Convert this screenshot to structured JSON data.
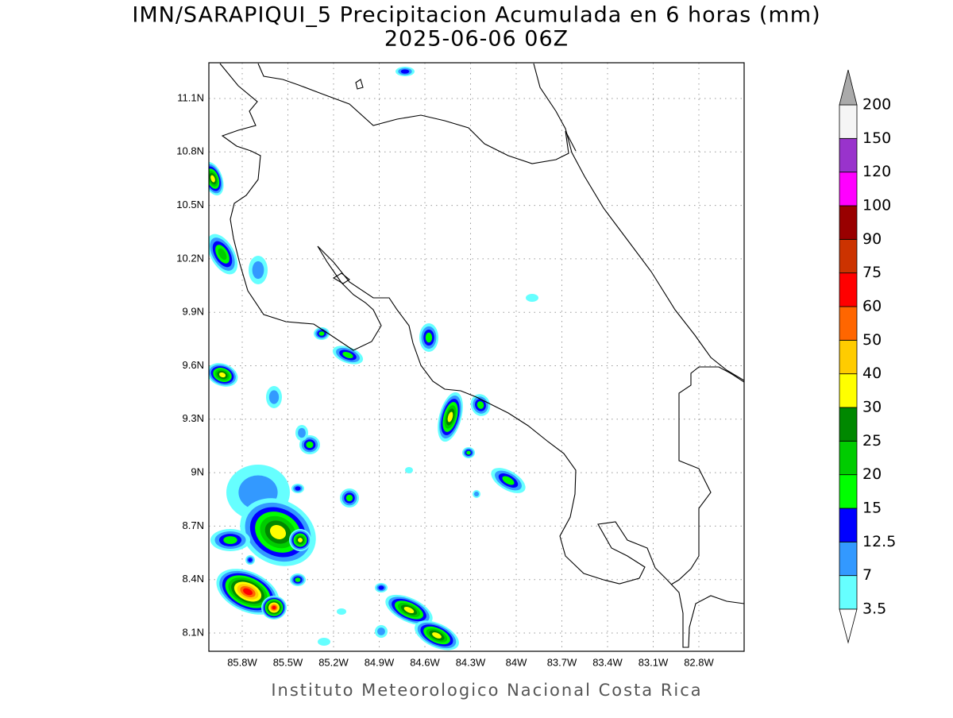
{
  "title": "IMN/SARAPIQUI_5 Precipitacion Acumulada en 6 horas (mm)",
  "subtitle": "2025-06-06 06Z",
  "map": {
    "lon_ticks": [
      {
        "value": -85.8,
        "label": "85.8W"
      },
      {
        "value": -85.5,
        "label": "85.5W"
      },
      {
        "value": -85.2,
        "label": "85.2W"
      },
      {
        "value": -84.9,
        "label": "84.9W"
      },
      {
        "value": -84.6,
        "label": "84.6W"
      },
      {
        "value": -84.3,
        "label": "84.3W"
      },
      {
        "value": -84.0,
        "label": "84W"
      },
      {
        "value": -83.7,
        "label": "83.7W"
      },
      {
        "value": -83.4,
        "label": "83.4W"
      },
      {
        "value": -83.1,
        "label": "83.1W"
      },
      {
        "value": -82.8,
        "label": "82.8W"
      }
    ],
    "lat_ticks": [
      {
        "value": 8.1,
        "label": "8.1N"
      },
      {
        "value": 8.4,
        "label": "8.4N"
      },
      {
        "value": 8.7,
        "label": "8.7N"
      },
      {
        "value": 9.0,
        "label": "9N"
      },
      {
        "value": 9.3,
        "label": "9.3N"
      },
      {
        "value": 9.6,
        "label": "9.6N"
      },
      {
        "value": 9.9,
        "label": "9.9N"
      },
      {
        "value": 10.2,
        "label": "10.2N"
      },
      {
        "value": 10.5,
        "label": "10.5N"
      },
      {
        "value": 10.8,
        "label": "10.8N"
      },
      {
        "value": 11.1,
        "label": "11.1N"
      }
    ],
    "grid": true
  },
  "colorbar": {
    "levels": [
      3.5,
      7,
      12.5,
      15,
      20,
      25,
      30,
      40,
      50,
      60,
      75,
      90,
      100,
      120,
      150,
      200
    ],
    "colors": [
      "#66ffff",
      "#3399ff",
      "#0000ff",
      "#00ff00",
      "#00cc00",
      "#008800",
      "#ffff00",
      "#ffcc00",
      "#ff6600",
      "#ff0000",
      "#cc3300",
      "#990000",
      "#ff00ff",
      "#9933cc",
      "#f5f5f5"
    ],
    "under_color": "#ffffff",
    "over_color": "#aaaaaa"
  },
  "footer": "Instituto Meteorologico Nacional Costa Rica"
}
